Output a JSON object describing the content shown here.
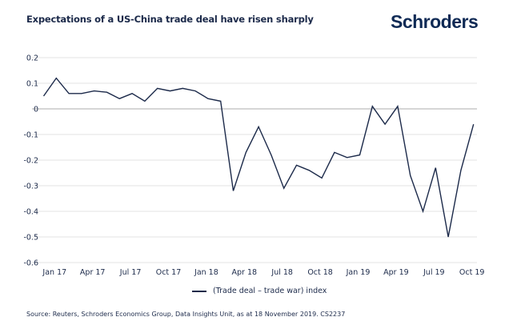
{
  "header": {
    "title": "Expectations of a US-China trade deal have risen sharply",
    "logo": "Schroders"
  },
  "footer": {
    "source": "Source: Reuters, Schroders Economics Group, Data Insights Unit, as at 18 November 2019. CS2237"
  },
  "colors": {
    "line": "#1c2a4a",
    "grid": "#e3e3e3",
    "zero": "#c8c8c8"
  },
  "chart_data": {
    "type": "line",
    "title": "Expectations of a US-China trade deal have risen sharply",
    "xlabel": "",
    "ylabel": "",
    "ylim": [
      -0.6,
      0.2
    ],
    "yticks": [
      "0.2",
      "0.1",
      "0",
      "-0.1",
      "-0.2",
      "-0.3",
      "-0.4",
      "-0.5",
      "-0.6"
    ],
    "ytick_values": [
      0.2,
      0.1,
      0,
      -0.1,
      -0.2,
      -0.3,
      -0.4,
      -0.5,
      -0.6
    ],
    "xtick_labels": [
      "Jan 17",
      "Apr 17",
      "Jul 17",
      "Oct 17",
      "Jan 18",
      "Apr 18",
      "Jul 18",
      "Oct 18",
      "Jan 19",
      "Apr 19",
      "Jul 19",
      "Oct 19"
    ],
    "xtick_indices": [
      1,
      4,
      7,
      10,
      13,
      16,
      19,
      22,
      25,
      28,
      31,
      34
    ],
    "grid": true,
    "legend_position": "bottom-center",
    "x": [
      "Dec 16",
      "Jan 17",
      "Feb 17",
      "Mar 17",
      "Apr 17",
      "May 17",
      "Jun 17",
      "Jul 17",
      "Aug 17",
      "Sep 17",
      "Oct 17",
      "Nov 17",
      "Dec 17",
      "Jan 18",
      "Feb 18",
      "Mar 18",
      "Apr 18",
      "May 18",
      "Jun 18",
      "Jul 18",
      "Aug 18",
      "Sep 18",
      "Oct 18",
      "Nov 18",
      "Dec 18",
      "Jan 19",
      "Feb 19",
      "Mar 19",
      "Apr 19",
      "May 19",
      "Jun 19",
      "Jul 19",
      "Aug 19",
      "Sep 19",
      "Oct 19"
    ],
    "series": [
      {
        "name": "(Trade deal – trade war) index",
        "values": [
          0.05,
          0.12,
          0.06,
          0.06,
          0.07,
          0.065,
          0.04,
          0.06,
          0.03,
          0.08,
          0.07,
          0.08,
          0.07,
          0.04,
          0.03,
          -0.32,
          -0.17,
          -0.07,
          -0.18,
          -0.31,
          -0.22,
          -0.24,
          -0.27,
          -0.17,
          -0.19,
          -0.18,
          0.01,
          -0.06,
          0.01,
          -0.26,
          -0.4,
          -0.23,
          -0.5,
          -0.24,
          -0.06
        ]
      }
    ]
  }
}
